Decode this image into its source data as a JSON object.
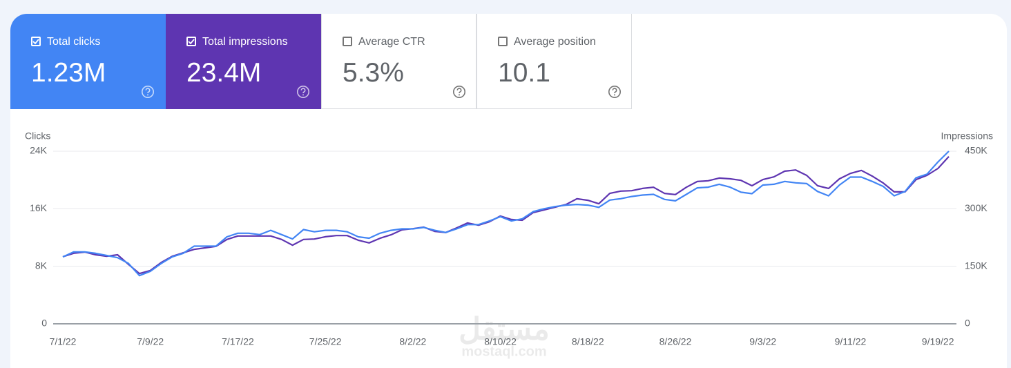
{
  "cards": [
    {
      "title": "Total clicks",
      "value": "1.23M",
      "checked": true,
      "color": "#4285f4"
    },
    {
      "title": "Total impressions",
      "value": "23.4M",
      "checked": true,
      "color": "#5e35b1"
    },
    {
      "title": "Average CTR",
      "value": "5.3%",
      "checked": false,
      "color": "#ffffff"
    },
    {
      "title": "Average position",
      "value": "10.1",
      "checked": false,
      "color": "#ffffff"
    }
  ],
  "watermark": {
    "arabic": "مستقل",
    "latin": "mostaql.com"
  },
  "chart_data": {
    "type": "line",
    "ylabel": "Clicks",
    "y2label": "Impressions",
    "categories": [
      "7/1/22",
      null,
      null,
      null,
      null,
      null,
      null,
      null,
      "7/9/22",
      null,
      null,
      null,
      null,
      null,
      null,
      null,
      "7/17/22",
      null,
      null,
      null,
      null,
      null,
      null,
      null,
      "7/25/22",
      null,
      null,
      null,
      null,
      null,
      null,
      null,
      "8/2/22",
      null,
      null,
      null,
      null,
      null,
      null,
      null,
      "8/10/22",
      null,
      null,
      null,
      null,
      null,
      null,
      null,
      "8/18/22",
      null,
      null,
      null,
      null,
      null,
      null,
      null,
      "8/26/22",
      null,
      null,
      null,
      null,
      null,
      null,
      null,
      "9/3/22",
      null,
      null,
      null,
      null,
      null,
      null,
      null,
      "9/11/22",
      null,
      null,
      null,
      null,
      null,
      null,
      null,
      "9/19/22",
      null
    ],
    "series": [
      {
        "name": "Clicks",
        "color": "#4285f4",
        "values": [
          9300,
          10000,
          10000,
          9800,
          9500,
          9200,
          8400,
          6700,
          7300,
          8400,
          9300,
          9800,
          10800,
          10800,
          10800,
          12100,
          12600,
          12600,
          12400,
          13000,
          12400,
          11800,
          13100,
          12800,
          13000,
          13000,
          12800,
          12100,
          11900,
          12600,
          13000,
          13200,
          13200,
          13400,
          13000,
          12700,
          13200,
          13800,
          13800,
          14300,
          14900,
          14300,
          14600,
          15600,
          16000,
          16300,
          16500,
          16600,
          16500,
          16200,
          17200,
          17400,
          17700,
          17900,
          18000,
          17300,
          17100,
          18000,
          18900,
          19000,
          19400,
          19000,
          18300,
          18100,
          19300,
          19400,
          19800,
          19600,
          19500,
          18400,
          17800,
          19300,
          20400,
          20400,
          19800,
          19100,
          17800,
          18400,
          20300,
          20800,
          22500,
          24000
        ]
      },
      {
        "name": "Impressions",
        "color": "#5e35b1",
        "axis": "y2",
        "values": [
          175000,
          184000,
          187000,
          180000,
          176000,
          180000,
          155000,
          131000,
          139000,
          160000,
          176000,
          185000,
          194000,
          198000,
          202000,
          220000,
          229000,
          229000,
          229000,
          229000,
          220000,
          205000,
          220000,
          221000,
          227000,
          230000,
          230000,
          218000,
          211000,
          223000,
          232000,
          245000,
          248000,
          252000,
          241000,
          238000,
          250000,
          263000,
          257000,
          266000,
          281000,
          272000,
          270000,
          290000,
          297000,
          304000,
          311000,
          326000,
          322000,
          313000,
          340000,
          346000,
          347000,
          353000,
          356000,
          340000,
          337000,
          356000,
          371000,
          373000,
          380000,
          378000,
          374000,
          360000,
          376000,
          383000,
          398000,
          401000,
          387000,
          360000,
          353000,
          378000,
          392000,
          400000,
          385000,
          367000,
          344000,
          344000,
          376000,
          387000,
          405000,
          436000
        ]
      }
    ],
    "ylim": [
      0,
      24000
    ],
    "yticks": [
      0,
      {
        "value": 8000,
        "label": "8K"
      },
      {
        "value": 16000,
        "label": "16K"
      },
      {
        "value": 24000,
        "label": "24K"
      }
    ],
    "y2lim": [
      0,
      450000
    ],
    "y2ticks": [
      0,
      {
        "value": 150000,
        "label": "150K"
      },
      {
        "value": 300000,
        "label": "300K"
      },
      {
        "value": 450000,
        "label": "450K"
      }
    ],
    "grid": true
  }
}
